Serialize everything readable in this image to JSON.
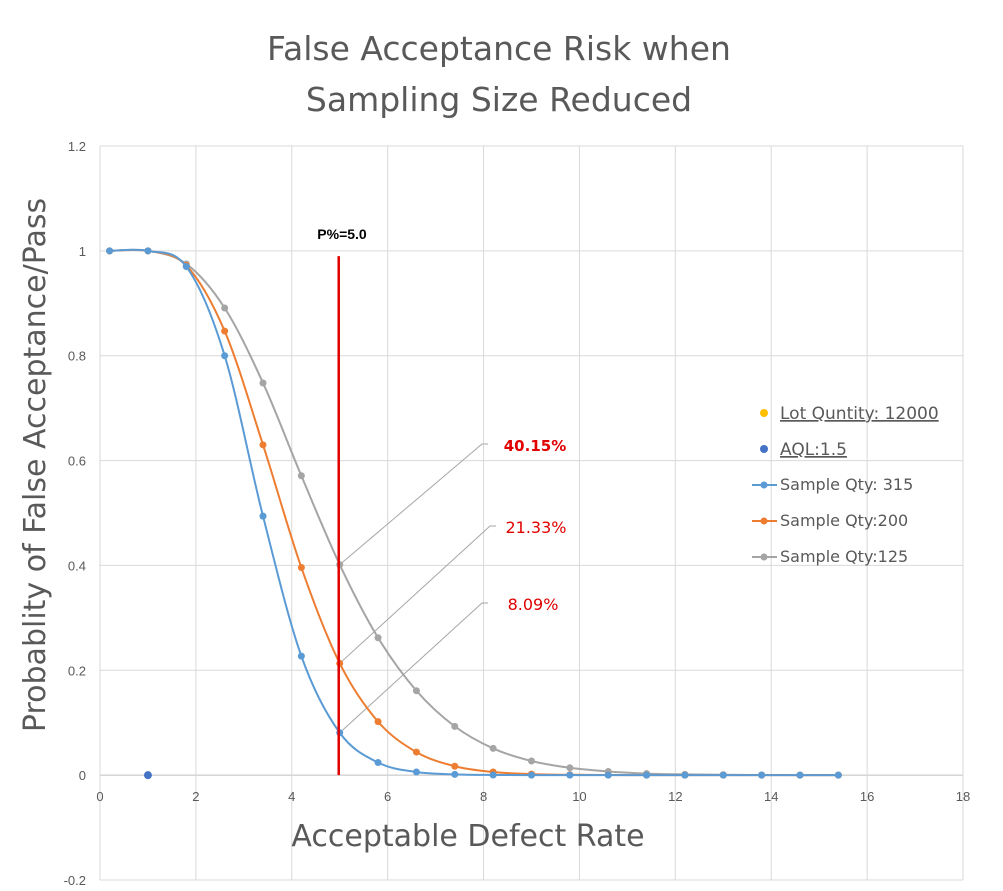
{
  "chart_data": {
    "type": "line",
    "title_lines": [
      "False Acceptance Risk when",
      "Sampling Size Reduced"
    ],
    "xlabel": "Acceptable Defect Rate",
    "ylabel": "Probablity of False Acceptance/Pass",
    "xlim": [
      0,
      18
    ],
    "ylim": [
      -0.2,
      1.2
    ],
    "x_ticks": [
      "0",
      "2",
      "4",
      "6",
      "8",
      "10",
      "12",
      "14",
      "16",
      "18"
    ],
    "y_ticks": [
      "-0.2",
      "0",
      "0.2",
      "0.4",
      "0.6",
      "0.8",
      "1",
      "1.2"
    ],
    "grid": true,
    "legend_position": "right",
    "series": [
      {
        "name": "Sample Qty: 315",
        "color": "#5b9bd5",
        "x": [
          0.2,
          1.0,
          1.8,
          2.6,
          3.4,
          4.2,
          5.0,
          5.8,
          6.6,
          7.4,
          8.2,
          9.0,
          9.8,
          10.6,
          11.4,
          12.2,
          13.0,
          13.8,
          14.6,
          15.4
        ],
        "y": [
          1.0,
          1.0,
          0.97,
          0.8,
          0.494,
          0.227,
          0.0809,
          0.024,
          0.006,
          0.0015,
          0.0003,
          0.0001,
          0,
          0,
          0,
          0,
          0,
          0,
          0,
          0
        ]
      },
      {
        "name": "Sample Qty:200",
        "color": "#ed7d31",
        "x": [
          0.2,
          1.0,
          1.8,
          2.6,
          3.4,
          4.2,
          5.0,
          5.8,
          6.6,
          7.4,
          8.2,
          9.0,
          9.8,
          10.6,
          11.4,
          12.2,
          13.0,
          13.8,
          14.6,
          15.4
        ],
        "y": [
          1.0,
          1.0,
          0.972,
          0.847,
          0.63,
          0.396,
          0.2133,
          0.102,
          0.044,
          0.017,
          0.006,
          0.002,
          0.0007,
          0.0002,
          0.0001,
          0,
          0,
          0,
          0,
          0
        ]
      },
      {
        "name": "Sample Qty:125",
        "color": "#a5a5a5",
        "x": [
          0.2,
          1.0,
          1.8,
          2.6,
          3.4,
          4.2,
          5.0,
          5.8,
          6.6,
          7.4,
          8.2,
          9.0,
          9.8,
          10.6,
          11.4,
          12.2,
          13.0,
          13.8,
          14.6,
          15.4
        ],
        "y": [
          1.0,
          1.0,
          0.975,
          0.891,
          0.748,
          0.571,
          0.4015,
          0.262,
          0.161,
          0.093,
          0.051,
          0.027,
          0.014,
          0.007,
          0.003,
          0.0015,
          0.0007,
          0.0003,
          0.0001,
          0
        ]
      }
    ],
    "point_series": [
      {
        "name": "Lot Quntity: 12000",
        "color": "#ffc000",
        "x": [],
        "y": []
      },
      {
        "name": "AQL:1.5",
        "color": "#4472c4",
        "x": [
          1.0
        ],
        "y": [
          0
        ]
      }
    ],
    "vertical_marker": {
      "label": "P%=5.0",
      "x": 5.0,
      "y_top": 0.99,
      "color": "#e00000"
    },
    "callouts": [
      {
        "text": "40.15%",
        "x": 5.0,
        "y": 0.4015,
        "bold": true
      },
      {
        "text": "21.33%",
        "x": 5.0,
        "y": 0.2133,
        "bold": false
      },
      {
        "text": "8.09%",
        "x": 5.0,
        "y": 0.0809,
        "bold": false
      }
    ]
  }
}
